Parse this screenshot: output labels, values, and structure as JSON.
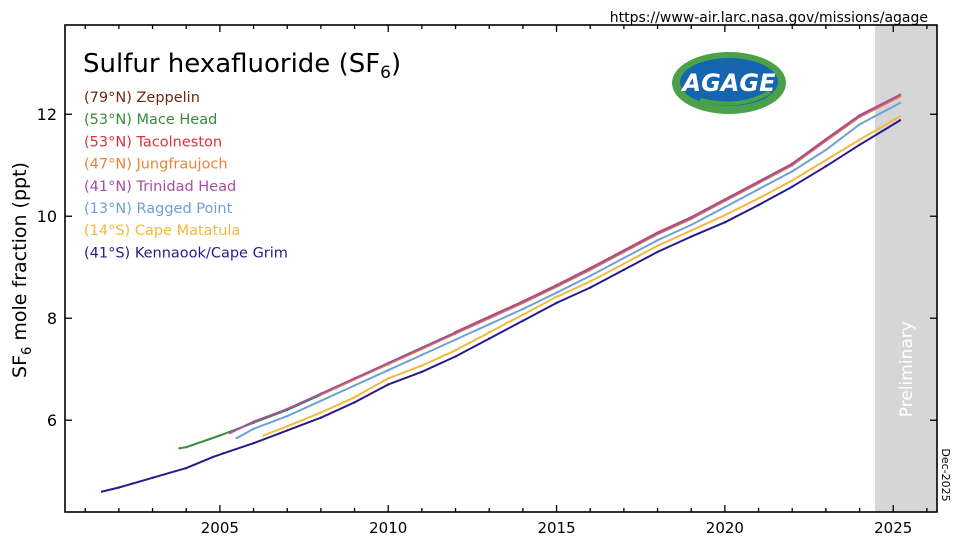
{
  "source_url": "https://www-air.larc.nasa.gov/missions/agage",
  "logo_text": "AGAGE",
  "date_stamp": "Dec-2025",
  "preliminary_label": "Preliminary",
  "chart_data": {
    "type": "line",
    "title": "Sulfur hexafluoride (SF",
    "title_subscript": "6",
    "title_suffix": ")",
    "ylabel": "SF",
    "ylabel_subscript": "6",
    "ylabel_suffix": " mole fraction (ppt)",
    "xlabel": "",
    "xlim": [
      2000.4,
      2026.3
    ],
    "ylim": [
      4.2,
      13.75
    ],
    "xticks": [
      2005,
      2010,
      2015,
      2020,
      2025
    ],
    "yticks": [
      6,
      8,
      10,
      12
    ],
    "grid": false,
    "legend_position": "top-left",
    "preliminary_from": 2024.46,
    "series": [
      {
        "name": "(79°N) Zeppelin",
        "color": "#6b2a14",
        "x": [
          2010,
          2011,
          2012,
          2013,
          2014,
          2015,
          2016,
          2017,
          2018,
          2019,
          2020,
          2021,
          2022,
          2023,
          2024,
          2025.2
        ],
        "y": [
          7.12,
          7.42,
          7.72,
          8.02,
          8.32,
          8.64,
          8.97,
          9.32,
          9.67,
          9.97,
          10.32,
          10.67,
          11.02,
          11.5,
          11.97,
          12.37
        ]
      },
      {
        "name": "(53°N) Mace Head",
        "color": "#3a8a3a",
        "x": [
          2003.8,
          2004,
          2005,
          2006,
          2007,
          2008,
          2009,
          2010,
          2011,
          2012,
          2013,
          2014,
          2015,
          2016,
          2017,
          2018,
          2019,
          2020,
          2021,
          2022,
          2023,
          2024,
          2025.2
        ],
        "y": [
          5.45,
          5.47,
          5.7,
          5.95,
          6.2,
          6.5,
          6.8,
          7.1,
          7.4,
          7.7,
          8.0,
          8.3,
          8.62,
          8.95,
          9.3,
          9.65,
          9.95,
          10.3,
          10.65,
          11.0,
          11.48,
          11.95,
          12.35
        ]
      },
      {
        "name": "(53°N) Tacolneston",
        "color": "#e0303a",
        "x": [
          2012,
          2013,
          2014,
          2015,
          2016,
          2017,
          2018,
          2019,
          2020,
          2021,
          2022,
          2023,
          2024,
          2025.2
        ],
        "y": [
          7.73,
          8.03,
          8.33,
          8.65,
          8.98,
          9.33,
          9.68,
          9.98,
          10.33,
          10.68,
          11.03,
          11.51,
          11.98,
          12.38
        ]
      },
      {
        "name": "(47°N) Jungfraujoch",
        "color": "#e8843a",
        "x": [
          2008,
          2009,
          2010,
          2011,
          2012,
          2013,
          2014,
          2015,
          2016,
          2017,
          2018,
          2019,
          2020,
          2021,
          2022,
          2023,
          2024,
          2025.2
        ],
        "y": [
          6.5,
          6.8,
          7.1,
          7.4,
          7.7,
          8.0,
          8.3,
          8.62,
          8.95,
          9.3,
          9.65,
          9.95,
          10.3,
          10.65,
          11.0,
          11.48,
          11.95,
          12.35
        ]
      },
      {
        "name": "(41°N) Trinidad Head",
        "color": "#a54ea5",
        "x": [
          2005.3,
          2006,
          2007,
          2008,
          2009,
          2010,
          2011,
          2012,
          2013,
          2014,
          2015,
          2016,
          2017,
          2018,
          2019,
          2020,
          2021,
          2022,
          2023,
          2024,
          2025.2
        ],
        "y": [
          5.75,
          5.97,
          6.22,
          6.52,
          6.82,
          7.12,
          7.42,
          7.72,
          8.02,
          8.32,
          8.64,
          8.97,
          9.32,
          9.67,
          9.97,
          10.32,
          10.67,
          11.02,
          11.5,
          11.97,
          12.38
        ]
      },
      {
        "name": "(13°N) Ragged Point",
        "color": "#6fa0d8",
        "x": [
          2005.5,
          2006,
          2007,
          2008,
          2009,
          2010,
          2011,
          2012,
          2013,
          2014,
          2015,
          2016,
          2017,
          2018,
          2019,
          2020,
          2021,
          2022,
          2023,
          2024,
          2025.2
        ],
        "y": [
          5.65,
          5.83,
          6.08,
          6.38,
          6.68,
          6.98,
          7.28,
          7.58,
          7.88,
          8.18,
          8.5,
          8.83,
          9.18,
          9.53,
          9.83,
          10.18,
          10.53,
          10.88,
          11.3,
          11.8,
          12.22
        ]
      },
      {
        "name": "(14°S) Cape Matatula",
        "color": "#f5b83c",
        "x": [
          2006.3,
          2007,
          2008,
          2009,
          2010,
          2011,
          2012,
          2013,
          2014,
          2015,
          2016,
          2017,
          2018,
          2019,
          2020,
          2021,
          2022,
          2023,
          2024,
          2025.2
        ],
        "y": [
          5.7,
          5.88,
          6.15,
          6.45,
          6.82,
          7.07,
          7.37,
          7.72,
          8.07,
          8.42,
          8.72,
          9.07,
          9.42,
          9.72,
          10.02,
          10.35,
          10.7,
          11.1,
          11.5,
          11.96
        ]
      },
      {
        "name": "(41°S) Kennaook/Cape Grim",
        "color": "#2a1a8a",
        "x": [
          2001.5,
          2002,
          2003,
          2004,
          2004.8,
          2005.1,
          2006,
          2007,
          2008,
          2009,
          2010,
          2011,
          2012,
          2013,
          2014,
          2015,
          2016,
          2017,
          2018,
          2019,
          2020,
          2021,
          2022,
          2023,
          2024,
          2025.2
        ],
        "y": [
          4.6,
          4.68,
          4.87,
          5.06,
          5.28,
          5.35,
          5.55,
          5.8,
          6.05,
          6.35,
          6.7,
          6.95,
          7.25,
          7.6,
          7.95,
          8.3,
          8.6,
          8.95,
          9.3,
          9.6,
          9.88,
          10.22,
          10.58,
          10.98,
          11.4,
          11.88
        ]
      }
    ]
  }
}
